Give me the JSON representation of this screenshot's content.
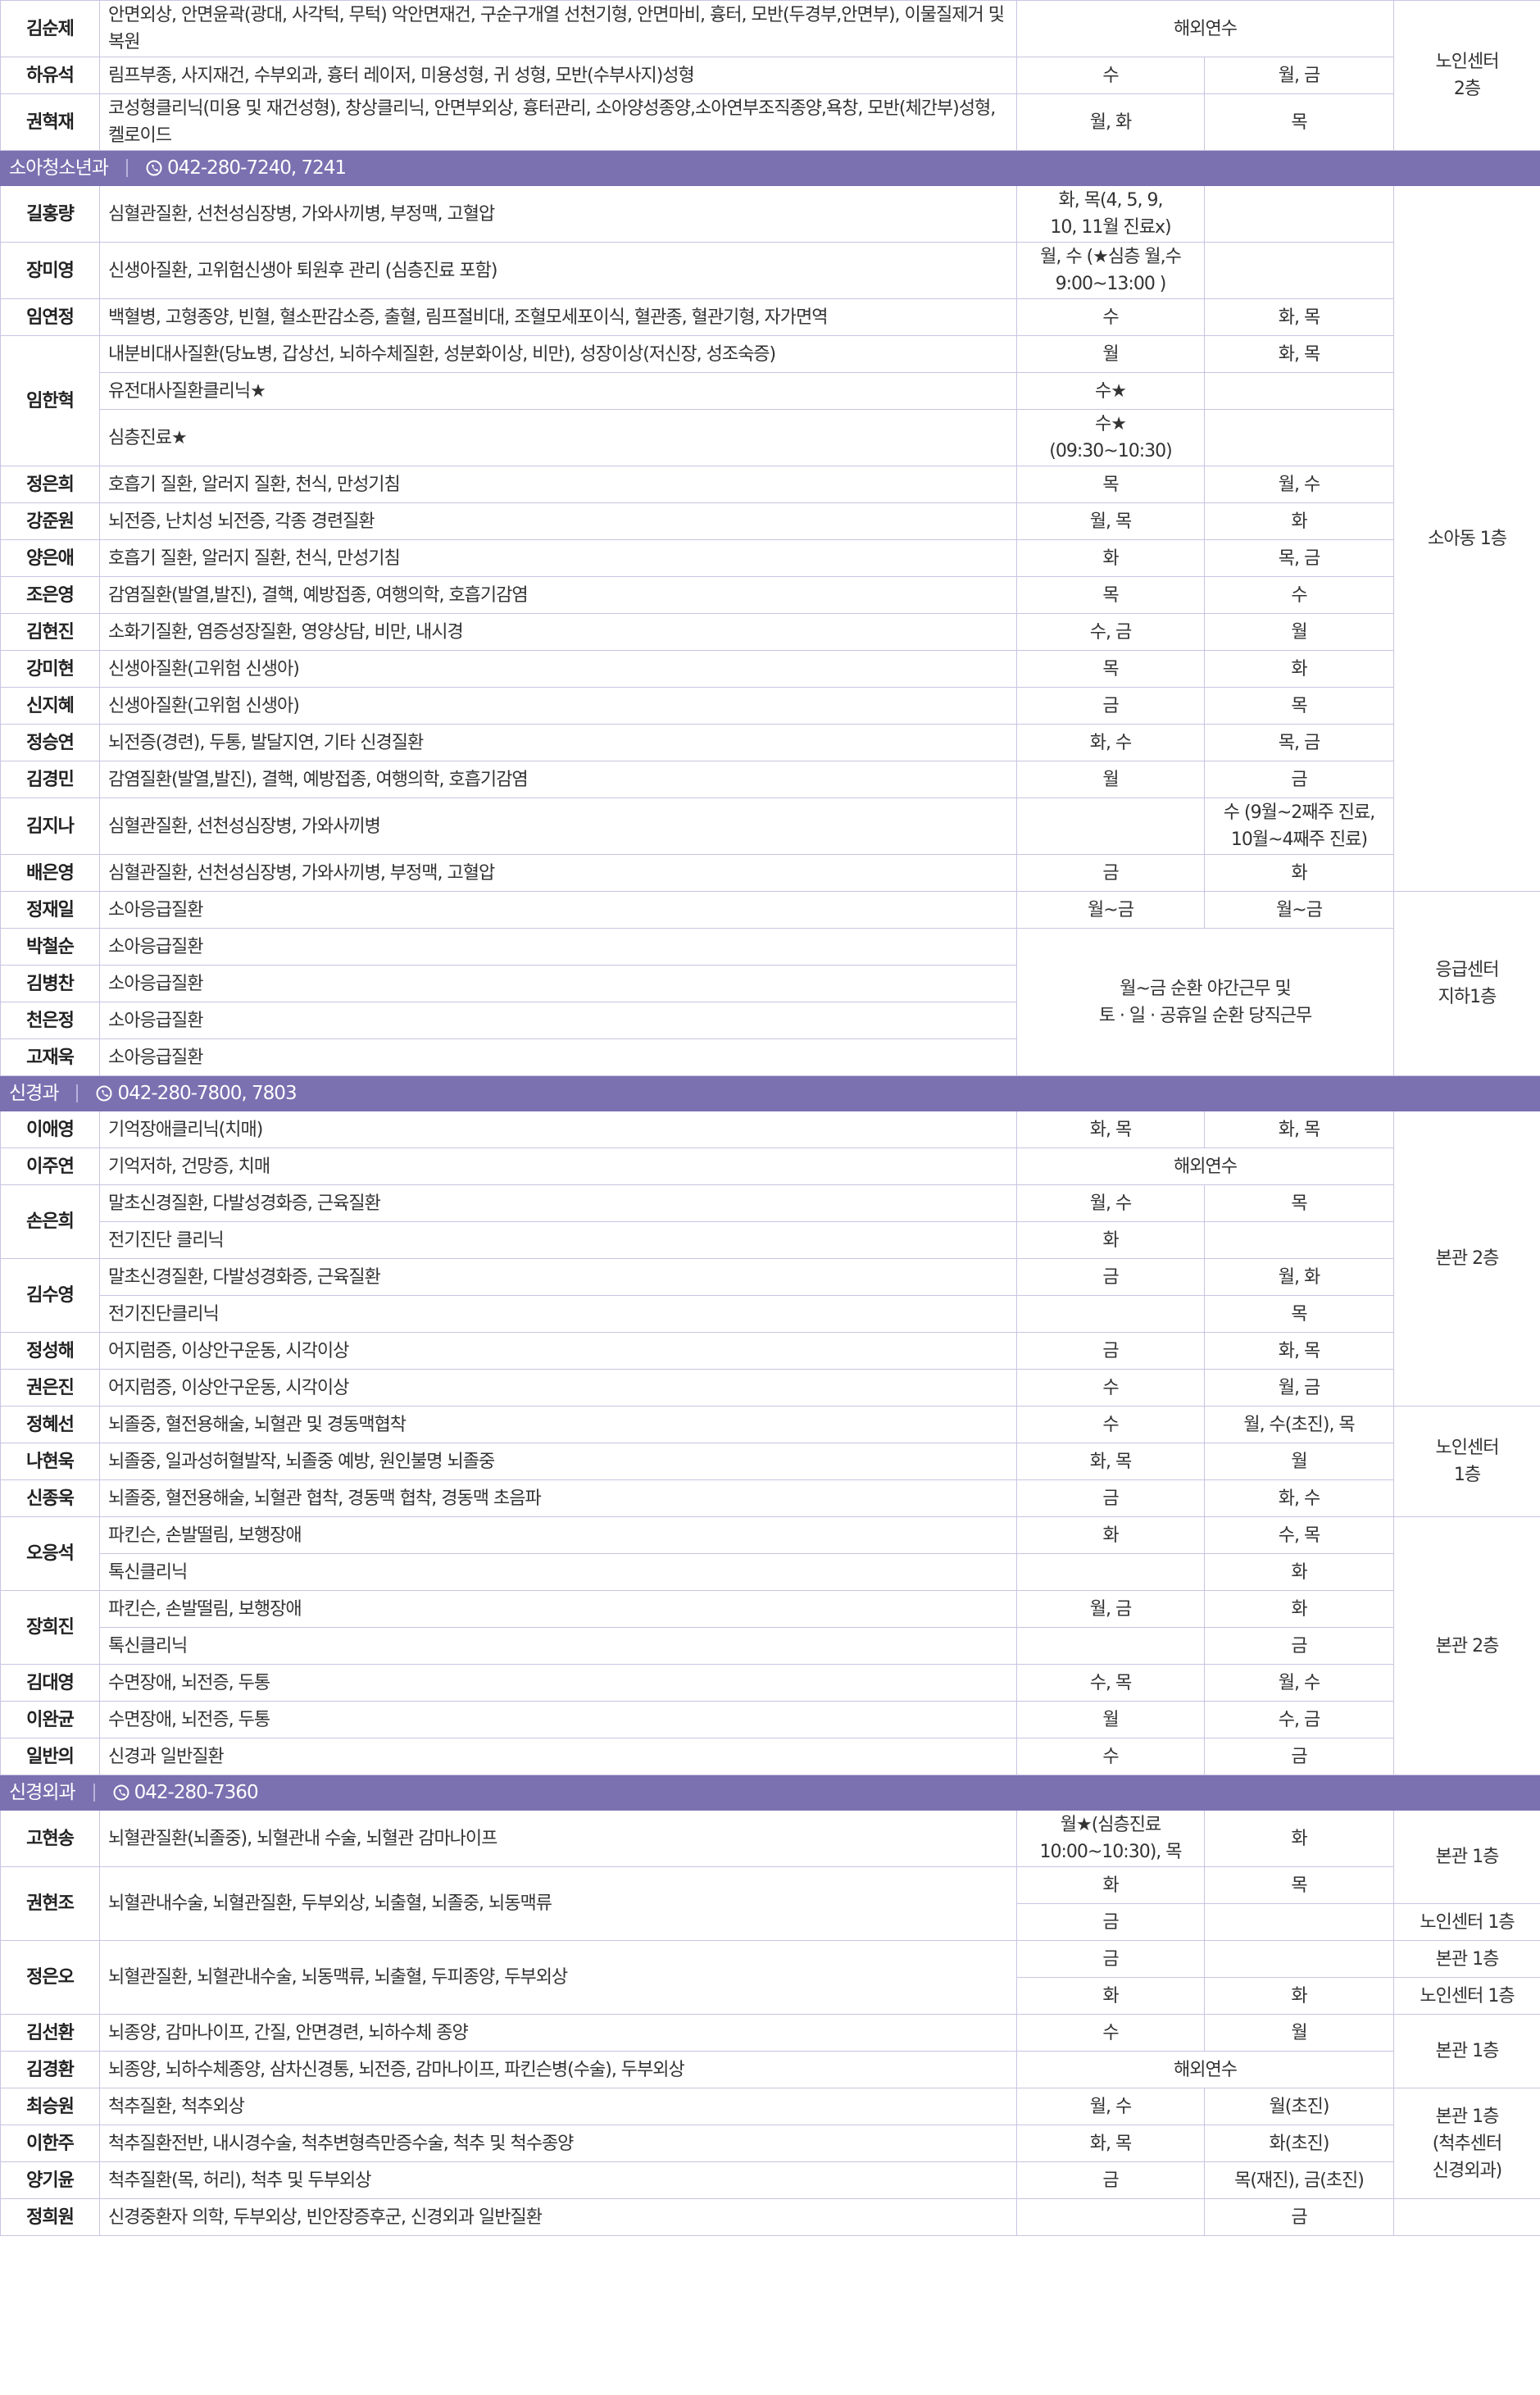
{
  "table": {
    "rows": [
      {
        "cells": [
          "김순제",
          "안면외상, 안면윤곽(광대, 사각턱, 무턱) 악안면재건, 구순구개열 선천기형, 안면마비, 흉터, 모반(두경부,안면부), 이물질제거 및 복원",
          {
            "text": "해외연수",
            "colspan": 2
          },
          {
            "text": "노인센터\n2층",
            "rowspan": 3
          }
        ]
      },
      {
        "cells": [
          "하유석",
          "림프부종, 사지재건, 수부외과, 흉터 레이저, 미용성형, 귀 성형, 모반(수부사지)성형",
          "수",
          "월, 금"
        ]
      },
      {
        "cells": [
          "권혁재",
          "코성형클리닉(미용 및 재건성형), 창상클리닉, 안면부외상, 흉터관리, 소아양성종양,소아연부조직종양,욕창, 모반(체간부)성형, 켈로이드",
          "월, 화",
          "목"
        ]
      },
      {
        "section": "소아청소년과",
        "phone": "042-280-7240, 7241"
      },
      {
        "cells": [
          "길홍량",
          "심혈관질환, 선천성심장병, 가와사끼병, 부정맥, 고혈압",
          "화, 목(4, 5, 9,\n10, 11월 진료x)",
          null,
          {
            "text": "소아동 1층",
            "rowspan": 17
          }
        ]
      },
      {
        "cells": [
          "장미영",
          "신생아질환, 고위험신생아 퇴원후 관리 (심층진료 포함)",
          "월, 수 (★심층 월,수\n9:00~13:00 )",
          null
        ]
      },
      {
        "cells": [
          "임연정",
          "백혈병, 고형종양, 빈혈, 혈소판감소증, 출혈, 림프절비대, 조혈모세포이식, 혈관종, 혈관기형, 자가면역",
          "수",
          "화, 목"
        ]
      },
      {
        "cells": [
          {
            "text": "임한혁",
            "rowspan": 3
          },
          "내분비대사질환(당뇨병, 갑상선, 뇌하수체질환, 성분화이상, 비만), 성장이상(저신장, 성조숙증)",
          "월",
          "화, 목"
        ]
      },
      {
        "cells": [
          "유전대사질환클리닉★",
          "수★",
          null
        ]
      },
      {
        "cells": [
          "심층진료★",
          "수★\n(09:30~10:30)",
          null
        ]
      },
      {
        "cells": [
          "정은희",
          "호흡기 질환, 알러지 질환, 천식, 만성기침",
          "목",
          "월, 수"
        ]
      },
      {
        "cells": [
          "강준원",
          "뇌전증, 난치성 뇌전증, 각종 경련질환",
          "월, 목",
          "화"
        ]
      },
      {
        "cells": [
          "양은애",
          "호흡기 질환, 알러지 질환, 천식, 만성기침",
          "화",
          "목, 금"
        ]
      },
      {
        "cells": [
          "조은영",
          "감염질환(발열,발진), 결핵, 예방접종, 여행의학, 호흡기감염",
          "목",
          "수"
        ]
      },
      {
        "cells": [
          "김현진",
          "소화기질환, 염증성장질환, 영양상담, 비만, 내시경",
          "수, 금",
          "월"
        ]
      },
      {
        "cells": [
          "강미현",
          "신생아질환(고위험 신생아)",
          "목",
          "화"
        ]
      },
      {
        "cells": [
          "신지혜",
          "신생아질환(고위험 신생아)",
          "금",
          "목"
        ]
      },
      {
        "cells": [
          "정승연",
          "뇌전증(경련), 두통, 발달지연, 기타 신경질환",
          "화, 수",
          "목, 금"
        ]
      },
      {
        "cells": [
          "김경민",
          "감염질환(발열,발진), 결핵, 예방접종, 여행의학, 호흡기감염",
          "월",
          "금"
        ]
      },
      {
        "cells": [
          "김지나",
          "심혈관질환, 선천성심장병, 가와사끼병",
          null,
          "수 (9월~2째주 진료,\n10월~4째주 진료)"
        ]
      },
      {
        "cells": [
          "배은영",
          "심혈관질환, 선천성심장병, 가와사끼병, 부정맥, 고혈압",
          "금",
          "화"
        ]
      },
      {
        "cells": [
          "정재일",
          "소아응급질환",
          "월~금",
          "월~금",
          {
            "text": "응급센터\n지하1층",
            "rowspan": 5
          }
        ]
      },
      {
        "cells": [
          "박철순",
          "소아응급질환",
          {
            "text": "월~금 순환 야간근무 및\n토 · 일 · 공휴일 순환 당직근무",
            "colspan": 2,
            "rowspan": 4
          }
        ]
      },
      {
        "cells": [
          "김병찬",
          "소아응급질환"
        ]
      },
      {
        "cells": [
          "천은정",
          "소아응급질환"
        ]
      },
      {
        "cells": [
          "고재욱",
          "소아응급질환"
        ]
      },
      {
        "section": "신경과",
        "phone": "042-280-7800, 7803"
      },
      {
        "cells": [
          "이애영",
          "기억장애클리닉(치매)",
          "화, 목",
          "화, 목",
          {
            "text": "본관 2층",
            "rowspan": 8
          }
        ]
      },
      {
        "cells": [
          "이주연",
          "기억저하, 건망증, 치매",
          {
            "text": "해외연수",
            "colspan": 2
          }
        ]
      },
      {
        "cells": [
          {
            "text": "손은희",
            "rowspan": 2
          },
          "말초신경질환, 다발성경화증, 근육질환",
          "월, 수",
          "목"
        ]
      },
      {
        "cells": [
          "전기진단 클리닉",
          "화",
          null
        ]
      },
      {
        "cells": [
          {
            "text": "김수영",
            "rowspan": 2
          },
          "말초신경질환, 다발성경화증, 근육질환",
          "금",
          "월, 화"
        ]
      },
      {
        "cells": [
          "전기진단클리닉",
          null,
          "목"
        ]
      },
      {
        "cells": [
          "정성해",
          "어지럼증, 이상안구운동, 시각이상",
          "금",
          "화, 목"
        ]
      },
      {
        "cells": [
          "권은진",
          "어지럼증, 이상안구운동, 시각이상",
          "수",
          "월, 금"
        ]
      },
      {
        "cells": [
          "정혜선",
          "뇌졸중, 혈전용해술, 뇌혈관 및 경동맥협착",
          "수",
          "월, 수(초진), 목",
          {
            "text": "노인센터\n1층",
            "rowspan": 3
          }
        ]
      },
      {
        "cells": [
          "나현욱",
          "뇌졸중, 일과성허혈발작, 뇌졸중 예방, 원인불명 뇌졸중",
          "화, 목",
          "월"
        ]
      },
      {
        "cells": [
          "신종욱",
          "뇌졸중, 혈전용해술, 뇌혈관 협착, 경동맥 협착, 경동맥 초음파",
          "금",
          "화, 수"
        ]
      },
      {
        "cells": [
          {
            "text": "오응석",
            "rowspan": 2
          },
          "파킨슨, 손발떨림, 보행장애",
          "화",
          "수, 목",
          {
            "text": "본관 2층",
            "rowspan": 7
          }
        ]
      },
      {
        "cells": [
          "톡신클리닉",
          null,
          "화"
        ]
      },
      {
        "cells": [
          {
            "text": "장희진",
            "rowspan": 2
          },
          "파킨슨, 손발떨림, 보행장애",
          "월, 금",
          "화"
        ]
      },
      {
        "cells": [
          "톡신클리닉",
          null,
          "금"
        ]
      },
      {
        "cells": [
          "김대영",
          "수면장애, 뇌전증, 두통",
          "수, 목",
          "월, 수"
        ]
      },
      {
        "cells": [
          "이완균",
          "수면장애, 뇌전증, 두통",
          "월",
          "수, 금"
        ]
      },
      {
        "cells": [
          "일반의",
          "신경과 일반질환",
          "수",
          "금"
        ]
      },
      {
        "section": "신경외과",
        "phone": "042-280-7360"
      },
      {
        "cells": [
          "고현송",
          "뇌혈관질환(뇌졸중), 뇌혈관내 수술, 뇌혈관 감마나이프",
          "월★(심층진료\n10:00~10:30), 목",
          "화",
          {
            "text": "본관 1층",
            "rowspan": 2
          }
        ]
      },
      {
        "cells": [
          {
            "text": "권현조",
            "rowspan": 2
          },
          {
            "text": "뇌혈관내수술, 뇌혈관질환, 두부외상, 뇌출혈, 뇌졸중, 뇌동맥류",
            "rowspan": 2
          },
          "화",
          "목"
        ]
      },
      {
        "cells": [
          "금",
          null,
          "노인센터 1층"
        ]
      },
      {
        "cells": [
          {
            "text": "정은오",
            "rowspan": 2
          },
          {
            "text": "뇌혈관질환, 뇌혈관내수술, 뇌동맥류, 뇌출혈, 두피종양, 두부외상",
            "rowspan": 2
          },
          "금",
          null,
          "본관 1층"
        ]
      },
      {
        "cells": [
          "화",
          "화",
          "노인센터 1층"
        ]
      },
      {
        "cells": [
          "김선환",
          "뇌종양, 감마나이프, 간질, 안면경련, 뇌하수체 종양",
          "수",
          "월",
          {
            "text": "본관 1층",
            "rowspan": 2
          }
        ]
      },
      {
        "cells": [
          "김경환",
          "뇌종양, 뇌하수체종양, 삼차신경통, 뇌전증, 감마나이프, 파킨슨병(수술), 두부외상",
          {
            "text": "해외연수",
            "colspan": 2
          }
        ]
      },
      {
        "cells": [
          "최승원",
          "척추질환, 척추외상",
          "월, 수",
          "월(초진)",
          {
            "text": "본관 1층\n(척추센터\n신경외과)",
            "rowspan": 3
          }
        ]
      },
      {
        "cells": [
          "이한주",
          "척추질환전반, 내시경수술, 척추변형측만증수술, 척추 및 척수종양",
          "화, 목",
          "화(초진)"
        ]
      },
      {
        "cells": [
          "양기윤",
          "척추질환(목, 허리), 척추 및 두부외상",
          "금",
          "목(재진), 금(초진)"
        ]
      },
      {
        "cells": [
          "정희원",
          "신경중환자 의학, 두부외상, 빈안장증후군, 신경외과 일반질환",
          null,
          "금",
          null
        ]
      }
    ]
  }
}
